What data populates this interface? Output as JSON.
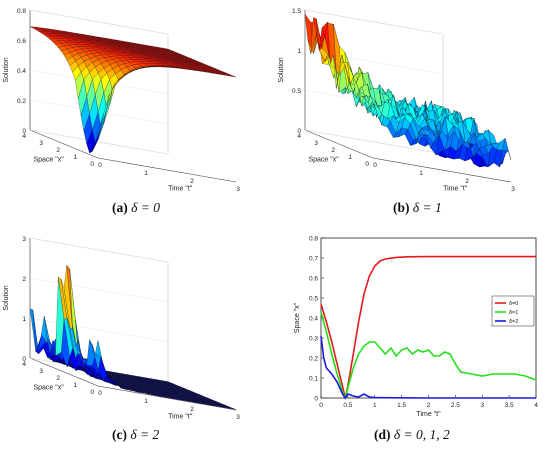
{
  "panels": [
    {
      "caption_label": "(a)",
      "caption_text": " δ = 0",
      "chart_data": {
        "type": "surface",
        "delta": 0,
        "zlabel": "Solution",
        "xlabel": "Time \"t\"",
        "ylabel": "Space \"x\"",
        "t_range": [
          0,
          3
        ],
        "x_range": [
          0,
          4
        ],
        "z_range": [
          0,
          0.8
        ],
        "t_ticks": [
          "0",
          "1",
          "2",
          "3"
        ],
        "x_ticks": [
          "0",
          "1",
          "2",
          "3",
          "4"
        ],
        "z_ticks": [
          "0",
          "0.2",
          "0.4",
          "0.6",
          "0.8"
        ],
        "colormap": "jet",
        "description_values": {
          "edge_value": 0.7,
          "min_value": 0.0,
          "min_at_x": 0.45
        }
      }
    },
    {
      "caption_label": "(b)",
      "caption_text": " δ = 1",
      "chart_data": {
        "type": "surface",
        "delta": 1,
        "zlabel": "Solution",
        "xlabel": "Time \"t\"",
        "ylabel": "Space \"x\"",
        "t_range": [
          0,
          3
        ],
        "x_range": [
          0,
          4
        ],
        "z_range": [
          0,
          1.5
        ],
        "t_ticks": [
          "0",
          "1",
          "2",
          "3"
        ],
        "x_ticks": [
          "0",
          "1",
          "2",
          "3",
          "4"
        ],
        "z_ticks": [
          "0",
          "0.5",
          "1",
          "1.5"
        ],
        "colormap": "jet",
        "description_values": {
          "peak": 1.4,
          "typical": 0.3
        }
      }
    },
    {
      "caption_label": "(c)",
      "caption_text": " δ = 2",
      "chart_data": {
        "type": "surface",
        "delta": 2,
        "zlabel": "Solution",
        "xlabel": "Time \"t\"",
        "ylabel": "Space \"x\"",
        "t_range": [
          0,
          3
        ],
        "x_range": [
          0,
          4
        ],
        "z_range": [
          0,
          3
        ],
        "t_ticks": [
          "0",
          "1",
          "2",
          "3"
        ],
        "x_ticks": [
          "0",
          "1",
          "2",
          "3",
          "4"
        ],
        "z_ticks": [
          "0",
          "1",
          "2",
          "3"
        ],
        "colormap": "jet",
        "description_values": {
          "peak": 2.3,
          "decays_after_t": 0.6
        }
      }
    },
    {
      "caption_label": "(d)",
      "caption_text": " δ = 0, 1, 2",
      "chart_data": {
        "type": "line",
        "xlabel": "Time \"t\"",
        "ylabel": "Space \"x\"",
        "xlim": [
          0,
          4
        ],
        "ylim": [
          0,
          0.8
        ],
        "x_ticks": [
          "0",
          "0.5",
          "1",
          "1.5",
          "2",
          "2.5",
          "3",
          "3.5",
          "4"
        ],
        "y_ticks": [
          "0",
          "0.1",
          "0.2",
          "0.3",
          "0.4",
          "0.5",
          "0.6",
          "0.7",
          "0.8"
        ],
        "legend_position": "right",
        "series": [
          {
            "name": "δ=0",
            "color": "#e41a1c",
            "x": [
              0,
              0.1,
              0.2,
              0.3,
              0.4,
              0.45,
              0.5,
              0.6,
              0.7,
              0.8,
              0.9,
              1.0,
              1.1,
              1.2,
              1.4,
              1.6,
              2.0,
              2.5,
              3.0,
              3.5,
              4.0
            ],
            "y": [
              0.47,
              0.38,
              0.28,
              0.17,
              0.06,
              0.0,
              0.06,
              0.22,
              0.38,
              0.52,
              0.61,
              0.66,
              0.685,
              0.695,
              0.703,
              0.706,
              0.707,
              0.707,
              0.707,
              0.707,
              0.707
            ]
          },
          {
            "name": "δ=1",
            "color": "#22e01a",
            "x": [
              0,
              0.1,
              0.2,
              0.3,
              0.4,
              0.45,
              0.5,
              0.6,
              0.7,
              0.8,
              0.9,
              1.0,
              1.1,
              1.2,
              1.3,
              1.4,
              1.5,
              1.6,
              1.7,
              1.8,
              1.9,
              2.0,
              2.1,
              2.2,
              2.3,
              2.4,
              2.5,
              2.6,
              2.8,
              3.0,
              3.2,
              3.4,
              3.6,
              3.8,
              3.9,
              4.0
            ],
            "y": [
              0.43,
              0.33,
              0.22,
              0.12,
              0.03,
              0.0,
              0.05,
              0.15,
              0.22,
              0.26,
              0.28,
              0.28,
              0.25,
              0.22,
              0.25,
              0.21,
              0.24,
              0.25,
              0.22,
              0.24,
              0.23,
              0.24,
              0.21,
              0.21,
              0.23,
              0.22,
              0.17,
              0.13,
              0.12,
              0.11,
              0.12,
              0.12,
              0.12,
              0.11,
              0.1,
              0.09
            ]
          },
          {
            "name": "δ=2",
            "color": "#1a1ae0",
            "x": [
              0,
              0.05,
              0.1,
              0.2,
              0.3,
              0.4,
              0.45,
              0.5,
              0.6,
              0.7,
              0.8,
              0.9,
              1.0,
              1.5,
              2.0,
              2.5,
              3.0,
              3.5,
              4.0
            ],
            "y": [
              0.31,
              0.2,
              0.15,
              0.12,
              0.08,
              0.02,
              0.0,
              0.02,
              0.01,
              0.005,
              0.02,
              0.005,
              0.002,
              0.001,
              0.0,
              0.0,
              0.0,
              0.0,
              0.0
            ]
          }
        ]
      }
    }
  ]
}
